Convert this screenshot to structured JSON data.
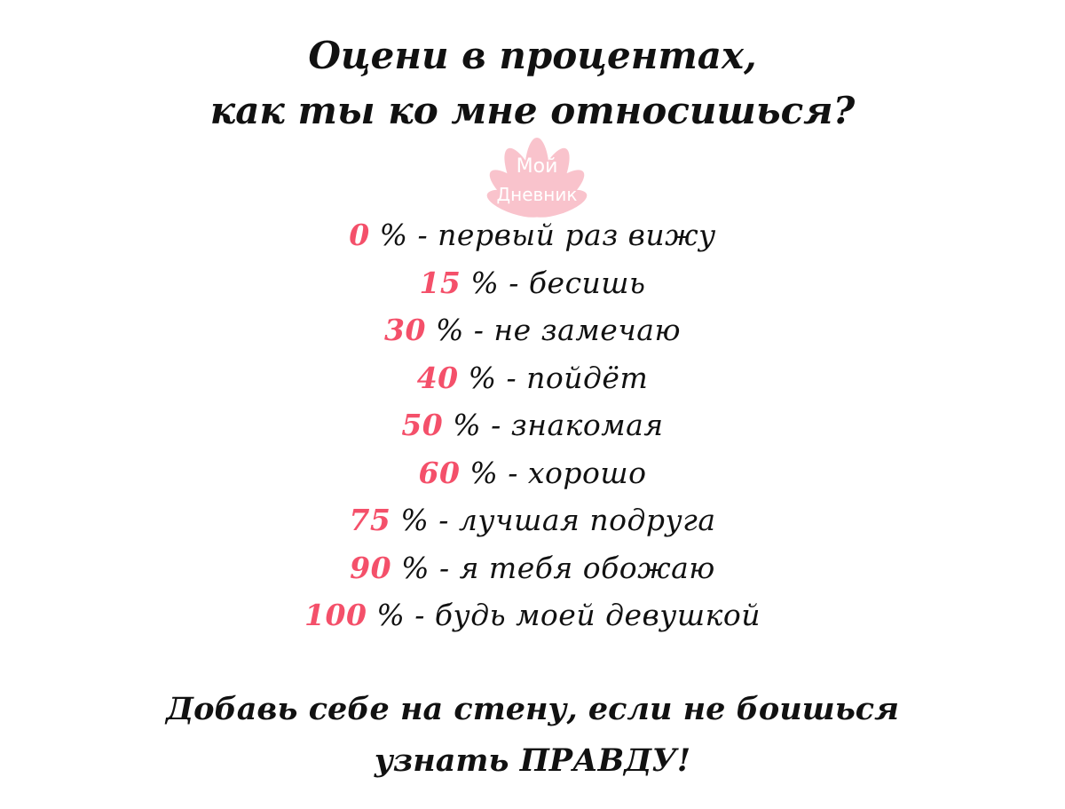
{
  "title": {
    "line1": "Оцени в процентах,",
    "line2": "как ты ко мне относишься?"
  },
  "watermark": {
    "line1": "Мой",
    "line2": "Дневник"
  },
  "accent_color": "#f4506a",
  "list": [
    {
      "num": "0",
      "text": "% - первый раз вижу"
    },
    {
      "num": "15",
      "text": "% - бесишь"
    },
    {
      "num": "30",
      "text": "% - не замечаю"
    },
    {
      "num": "40",
      "text": "% - пойдёт"
    },
    {
      "num": "50",
      "text": "% - знакомая"
    },
    {
      "num": "60",
      "text": "% - хорошо"
    },
    {
      "num": "75",
      "text": "% - лучшая подруга"
    },
    {
      "num": "90",
      "text": "% - я тебя обожаю"
    },
    {
      "num": "100",
      "text": "% - будь моей девушкой"
    }
  ],
  "footer": {
    "line1": "Добавь себе на стену, если не боишься",
    "line2": "узнать ПРАВДУ!"
  }
}
